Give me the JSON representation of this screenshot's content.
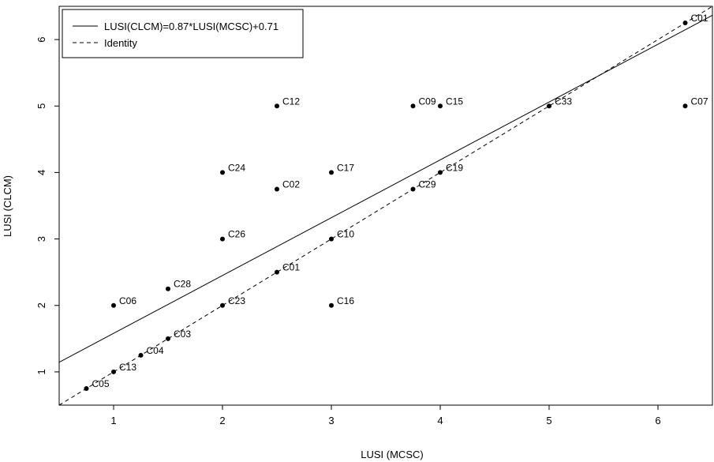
{
  "chart_data": {
    "type": "scatter",
    "xlabel": "LUSI (MCSC)",
    "ylabel": "LUSI (CLCM)",
    "xlim": [
      0.5,
      6.5
    ],
    "ylim": [
      0.5,
      6.5
    ],
    "xticks": [
      "1",
      "2",
      "3",
      "4",
      "5",
      "6"
    ],
    "yticks": [
      "1",
      "2",
      "3",
      "4",
      "5",
      "6"
    ],
    "grid": false,
    "legend": {
      "placement": "top-left",
      "entries": [
        {
          "label": "LUSI(CLCM)=0.87*LUSI(MCSC)+0.71",
          "style": "solid"
        },
        {
          "label": "Identity",
          "style": "dashed"
        }
      ]
    },
    "lines": [
      {
        "name": "LUSI(CLCM)=0.87*LUSI(MCSC)+0.71",
        "slope": 0.87,
        "intercept": 0.71,
        "style": "solid"
      },
      {
        "name": "Identity",
        "slope": 1,
        "intercept": 0,
        "style": "dashed"
      }
    ],
    "points": [
      {
        "x": 6.25,
        "y": 6.25,
        "label": "C01"
      },
      {
        "x": 2.5,
        "y": 5.0,
        "label": "C12"
      },
      {
        "x": 3.75,
        "y": 5.0,
        "label": "C09"
      },
      {
        "x": 4.0,
        "y": 5.0,
        "label": "C15"
      },
      {
        "x": 5.0,
        "y": 5.0,
        "label": "C33"
      },
      {
        "x": 6.25,
        "y": 5.0,
        "label": "C07"
      },
      {
        "x": 2.0,
        "y": 4.0,
        "label": "C24"
      },
      {
        "x": 3.0,
        "y": 4.0,
        "label": "C17"
      },
      {
        "x": 4.0,
        "y": 4.0,
        "label": "C19"
      },
      {
        "x": 2.5,
        "y": 3.75,
        "label": "C02"
      },
      {
        "x": 3.75,
        "y": 3.75,
        "label": "C29"
      },
      {
        "x": 2.0,
        "y": 3.0,
        "label": "C26"
      },
      {
        "x": 3.0,
        "y": 3.0,
        "label": "C10"
      },
      {
        "x": 2.5,
        "y": 2.5,
        "label": "C01"
      },
      {
        "x": 1.5,
        "y": 2.25,
        "label": "C28"
      },
      {
        "x": 1.0,
        "y": 2.0,
        "label": "C06"
      },
      {
        "x": 2.0,
        "y": 2.0,
        "label": "C23"
      },
      {
        "x": 3.0,
        "y": 2.0,
        "label": "C16"
      },
      {
        "x": 1.5,
        "y": 1.5,
        "label": "C03"
      },
      {
        "x": 1.25,
        "y": 1.25,
        "label": "C04"
      },
      {
        "x": 1.0,
        "y": 1.0,
        "label": "C13"
      },
      {
        "x": 0.75,
        "y": 0.75,
        "label": "C05"
      }
    ]
  }
}
